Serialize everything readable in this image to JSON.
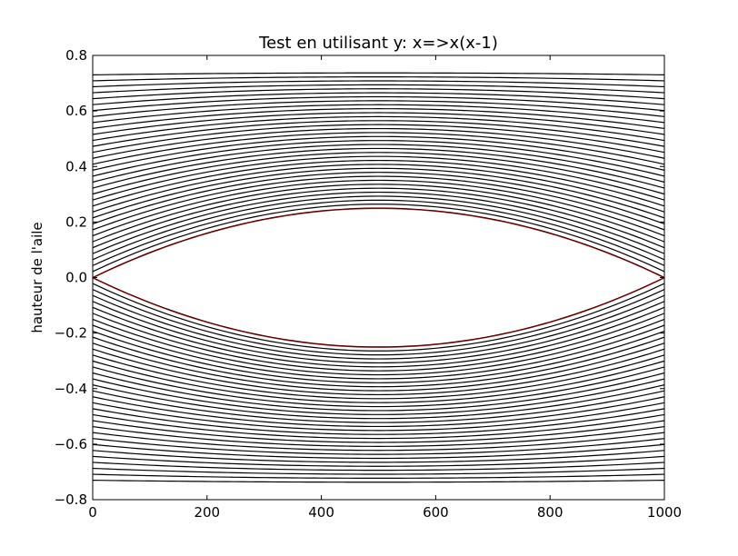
{
  "chart_data": {
    "type": "line",
    "title": "Test en utilisant y: x=>x(x-1)",
    "xlabel": "",
    "ylabel": "hauteur de l'aile",
    "xlim": [
      0,
      1000
    ],
    "ylim": [
      -0.8,
      0.8
    ],
    "xticks": [
      0,
      200,
      400,
      600,
      800,
      1000
    ],
    "xtick_labels": [
      "0",
      "200",
      "400",
      "600",
      "800",
      "1000"
    ],
    "yticks": [
      0.8,
      0.6,
      0.4,
      0.2,
      0.0,
      -0.2,
      -0.4,
      -0.6,
      -0.8
    ],
    "ytick_labels": [
      "0.8",
      "0.6",
      "0.4",
      "0.2",
      "0.0",
      "−0.2",
      "−0.4",
      "−0.6",
      "−0.8"
    ],
    "grid": false,
    "legend": "none",
    "streamline_color": "#000000",
    "profile_color": "#cc0000",
    "profile": {
      "upper_peak": 0.25,
      "lower_peak": -0.25,
      "chord": [
        0,
        1000
      ]
    },
    "streamlines": {
      "count_per_side": 35,
      "innermost_amplitude": 0.25,
      "outermost_offset": 0.73,
      "outermost_amplitude": 0.007
    }
  }
}
